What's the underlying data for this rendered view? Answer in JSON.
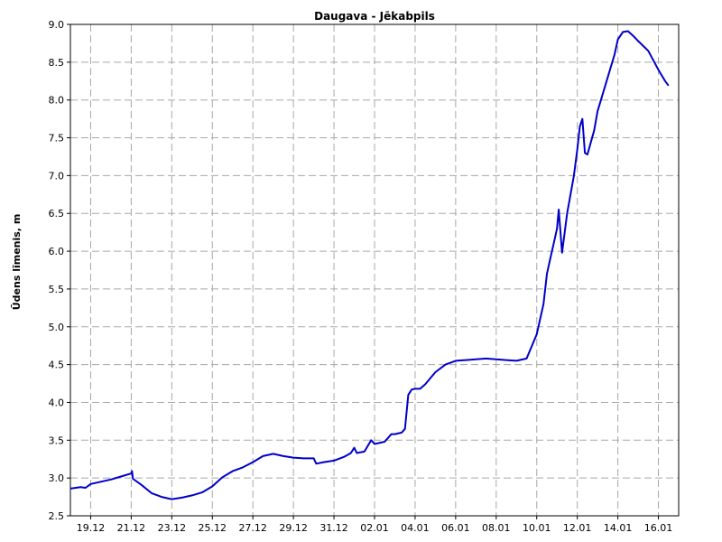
{
  "chart_data": {
    "type": "line",
    "title": "Daugava - Jēkabpils",
    "xlabel": "",
    "ylabel": "Ūdens līmenis, m",
    "ylim": [
      2.5,
      9.0
    ],
    "yticks": [
      "2.5",
      "3.0",
      "3.5",
      "4.0",
      "4.5",
      "5.0",
      "5.5",
      "6.0",
      "6.5",
      "7.0",
      "7.5",
      "8.0",
      "8.5",
      "9.0"
    ],
    "xlim": [
      "2015-12-18 00:00",
      "2016-01-17 00:00"
    ],
    "xticks": [
      {
        "label": "19.12",
        "date": "2015-12-19"
      },
      {
        "label": "21.12",
        "date": "2015-12-21"
      },
      {
        "label": "23.12",
        "date": "2015-12-23"
      },
      {
        "label": "25.12",
        "date": "2015-12-25"
      },
      {
        "label": "27.12",
        "date": "2015-12-27"
      },
      {
        "label": "29.12",
        "date": "2015-12-29"
      },
      {
        "label": "31.12",
        "date": "2015-12-31"
      },
      {
        "label": "02.01",
        "date": "2016-01-02"
      },
      {
        "label": "04.01",
        "date": "2016-01-04"
      },
      {
        "label": "06.01",
        "date": "2016-01-06"
      },
      {
        "label": "08.01",
        "date": "2016-01-08"
      },
      {
        "label": "10.01",
        "date": "2016-01-10"
      },
      {
        "label": "12.01",
        "date": "2016-01-12"
      },
      {
        "label": "14.01",
        "date": "2016-01-14"
      },
      {
        "label": "16.01",
        "date": "2016-01-16"
      }
    ],
    "grid": true,
    "series": [
      {
        "color": "#0000c8",
        "points": [
          [
            "2015-12-18 00:00",
            2.86
          ],
          [
            "2015-12-18 12:00",
            2.88
          ],
          [
            "2015-12-18 18:00",
            2.87
          ],
          [
            "2015-12-19 00:00",
            2.92
          ],
          [
            "2015-12-19 12:00",
            2.95
          ],
          [
            "2015-12-20 00:00",
            2.98
          ],
          [
            "2015-12-20 12:00",
            3.02
          ],
          [
            "2015-12-21 00:00",
            3.06
          ],
          [
            "2015-12-21 01:00",
            3.09
          ],
          [
            "2015-12-21 02:00",
            2.99
          ],
          [
            "2015-12-21 12:00",
            2.91
          ],
          [
            "2015-12-22 00:00",
            2.8
          ],
          [
            "2015-12-22 12:00",
            2.75
          ],
          [
            "2015-12-23 00:00",
            2.72
          ],
          [
            "2015-12-23 12:00",
            2.74
          ],
          [
            "2015-12-24 00:00",
            2.77
          ],
          [
            "2015-12-24 12:00",
            2.81
          ],
          [
            "2015-12-25 00:00",
            2.89
          ],
          [
            "2015-12-25 12:00",
            3.01
          ],
          [
            "2015-12-26 00:00",
            3.09
          ],
          [
            "2015-12-26 12:00",
            3.14
          ],
          [
            "2015-12-27 00:00",
            3.21
          ],
          [
            "2015-12-27 12:00",
            3.29
          ],
          [
            "2015-12-28 00:00",
            3.32
          ],
          [
            "2015-12-28 12:00",
            3.29
          ],
          [
            "2015-12-29 00:00",
            3.27
          ],
          [
            "2015-12-29 12:00",
            3.26
          ],
          [
            "2015-12-30 00:00",
            3.26
          ],
          [
            "2015-12-30 03:00",
            3.19
          ],
          [
            "2015-12-30 12:00",
            3.21
          ],
          [
            "2015-12-31 00:00",
            3.23
          ],
          [
            "2015-12-31 12:00",
            3.28
          ],
          [
            "2015-12-31 20:00",
            3.33
          ],
          [
            "2016-01-01 00:00",
            3.4
          ],
          [
            "2016-01-01 03:00",
            3.33
          ],
          [
            "2016-01-01 12:00",
            3.35
          ],
          [
            "2016-01-01 20:00",
            3.5
          ],
          [
            "2016-01-02 00:00",
            3.45
          ],
          [
            "2016-01-02 12:00",
            3.48
          ],
          [
            "2016-01-02 20:00",
            3.58
          ],
          [
            "2016-01-03 00:00",
            3.58
          ],
          [
            "2016-01-03 08:00",
            3.6
          ],
          [
            "2016-01-03 12:00",
            3.65
          ],
          [
            "2016-01-03 16:00",
            4.1
          ],
          [
            "2016-01-03 20:00",
            4.17
          ],
          [
            "2016-01-04 00:00",
            4.18
          ],
          [
            "2016-01-04 06:00",
            4.18
          ],
          [
            "2016-01-04 12:00",
            4.24
          ],
          [
            "2016-01-05 00:00",
            4.4
          ],
          [
            "2016-01-05 12:00",
            4.5
          ],
          [
            "2016-01-06 00:00",
            4.55
          ],
          [
            "2016-01-06 12:00",
            4.56
          ],
          [
            "2016-01-07 00:00",
            4.57
          ],
          [
            "2016-01-07 12:00",
            4.58
          ],
          [
            "2016-01-08 00:00",
            4.57
          ],
          [
            "2016-01-08 12:00",
            4.56
          ],
          [
            "2016-01-09 00:00",
            4.55
          ],
          [
            "2016-01-09 12:00",
            4.58
          ],
          [
            "2016-01-10 00:00",
            4.9
          ],
          [
            "2016-01-10 08:00",
            5.3
          ],
          [
            "2016-01-10 12:00",
            5.7
          ],
          [
            "2016-01-10 16:00",
            5.9
          ],
          [
            "2016-01-10 20:00",
            6.1
          ],
          [
            "2016-01-11 00:00",
            6.3
          ],
          [
            "2016-01-11 02:00",
            6.55
          ],
          [
            "2016-01-11 06:00",
            5.98
          ],
          [
            "2016-01-11 12:00",
            6.5
          ],
          [
            "2016-01-11 20:00",
            7.0
          ],
          [
            "2016-01-12 00:00",
            7.35
          ],
          [
            "2016-01-12 03:00",
            7.65
          ],
          [
            "2016-01-12 06:00",
            7.75
          ],
          [
            "2016-01-12 09:00",
            7.3
          ],
          [
            "2016-01-12 12:00",
            7.28
          ],
          [
            "2016-01-12 20:00",
            7.6
          ],
          [
            "2016-01-13 00:00",
            7.85
          ],
          [
            "2016-01-13 12:00",
            8.3
          ],
          [
            "2016-01-13 20:00",
            8.6
          ],
          [
            "2016-01-14 00:00",
            8.8
          ],
          [
            "2016-01-14 06:00",
            8.9
          ],
          [
            "2016-01-14 12:00",
            8.91
          ],
          [
            "2016-01-14 18:00",
            8.85
          ],
          [
            "2016-01-15 00:00",
            8.78
          ],
          [
            "2016-01-15 12:00",
            8.65
          ],
          [
            "2016-01-16 00:00",
            8.4
          ],
          [
            "2016-01-16 08:00",
            8.25
          ],
          [
            "2016-01-16 12:00",
            8.19
          ]
        ]
      }
    ]
  }
}
